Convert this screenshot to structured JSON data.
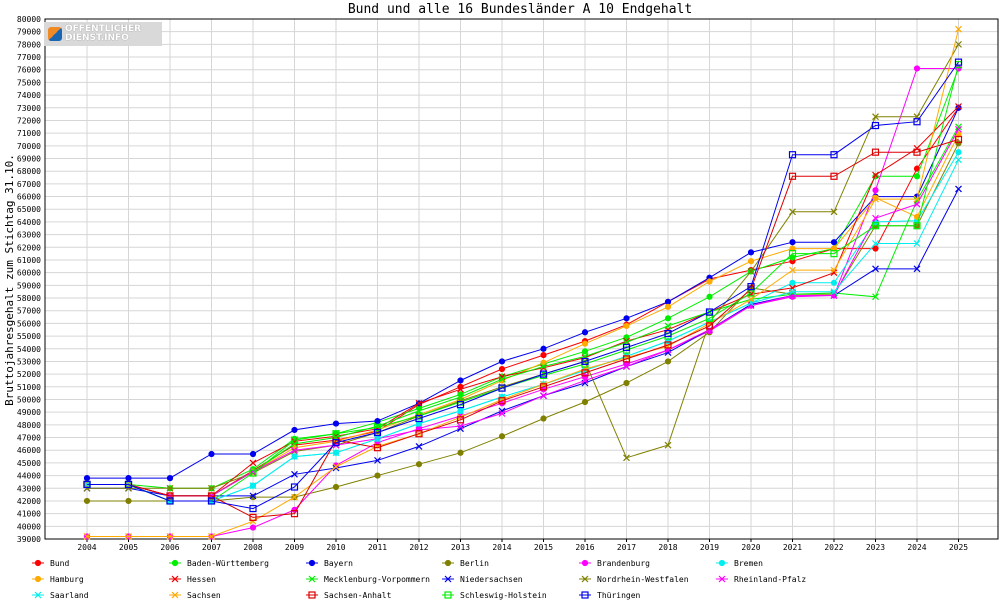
{
  "logo": {
    "line1": "ÖFFENTLICHER",
    "line2": "DIENST.INFO"
  },
  "chart_data": {
    "type": "line",
    "title": "Bund und alle 16 Bundesländer A 10 Endgehalt",
    "ylabel": "Bruttojahresgehalt zum Stichtag 31.10.",
    "xlabel": "",
    "categories": [
      "2004",
      "2005",
      "2006",
      "2007",
      "2008",
      "2009",
      "2010",
      "2011",
      "2012",
      "2013",
      "2014",
      "2015",
      "2016",
      "2017",
      "2018",
      "2019",
      "2020",
      "2021",
      "2022",
      "2023",
      "2024",
      "2025"
    ],
    "ylim": [
      39000,
      80000
    ],
    "ytick_step": 1000,
    "grid": true,
    "legend_position": "bottom",
    "series": [
      {
        "name": "Bund",
        "color": "#ff0000",
        "marker": "dot",
        "values": [
          43300,
          43300,
          42400,
          42400,
          44400,
          46400,
          46800,
          47500,
          49600,
          51000,
          52400,
          53500,
          54600,
          55900,
          57700,
          59500,
          60200,
          60900,
          61900,
          61900,
          68200,
          73000
        ]
      },
      {
        "name": "Baden-Württemberg",
        "color": "#00ee00",
        "marker": "dot",
        "values": [
          43300,
          43300,
          43000,
          43000,
          44500,
          46900,
          47300,
          48200,
          49300,
          50400,
          51800,
          52800,
          53800,
          54900,
          56400,
          58100,
          60100,
          61200,
          61900,
          67600,
          67600,
          76100
        ]
      },
      {
        "name": "Bayern",
        "color": "#0000ee",
        "marker": "dot",
        "values": [
          43800,
          43800,
          43800,
          45700,
          45700,
          47600,
          48100,
          48300,
          49700,
          51500,
          53000,
          54000,
          55300,
          56400,
          57700,
          59600,
          61600,
          62400,
          62400,
          66000,
          66000,
          73000
        ]
      },
      {
        "name": "Berlin",
        "color": "#808000",
        "marker": "dot",
        "values": [
          42000,
          42000,
          42000,
          42000,
          42300,
          42300,
          43100,
          44000,
          44900,
          45800,
          47100,
          48500,
          49800,
          51300,
          53000,
          55300,
          58800,
          58300,
          58300,
          63700,
          63700,
          70200
        ]
      },
      {
        "name": "Brandenburg",
        "color": "#ff00ff",
        "marker": "dot",
        "values": [
          39200,
          39200,
          39200,
          39200,
          39900,
          41300,
          44800,
          46600,
          47700,
          48700,
          49700,
          50800,
          51800,
          52800,
          53900,
          55400,
          57400,
          58100,
          58200,
          66500,
          76100,
          76100
        ]
      },
      {
        "name": "Bremen",
        "color": "#00eeee",
        "marker": "dot",
        "values": [
          43300,
          43300,
          42000,
          42000,
          43200,
          45500,
          45800,
          46900,
          48100,
          49100,
          50200,
          51200,
          52300,
          53400,
          54600,
          56100,
          57600,
          59200,
          59200,
          64000,
          64100,
          69500
        ]
      },
      {
        "name": "Hamburg",
        "color": "#ffaa00",
        "marker": "dot",
        "values": [
          43300,
          43300,
          42400,
          42400,
          44300,
          46200,
          46700,
          47600,
          48800,
          50000,
          51500,
          52900,
          54400,
          55800,
          57300,
          59300,
          60900,
          61900,
          61900,
          65900,
          64400,
          70900
        ]
      },
      {
        "name": "Hessen",
        "color": "#ee0000",
        "marker": "x",
        "values": [
          43300,
          43300,
          42400,
          42400,
          45000,
          46700,
          47100,
          47700,
          49700,
          50800,
          51800,
          52500,
          53300,
          54600,
          55500,
          56900,
          58300,
          58800,
          60000,
          67700,
          69800,
          73100
        ]
      },
      {
        "name": "Mecklenburg-Vorpommern",
        "color": "#00ee00",
        "marker": "x",
        "values": [
          43300,
          43300,
          42400,
          42400,
          44300,
          46500,
          47000,
          47900,
          49100,
          50200,
          51600,
          52600,
          53400,
          54500,
          55800,
          56900,
          57900,
          58300,
          58400,
          58100,
          65700,
          71500
        ]
      },
      {
        "name": "Niedersachsen",
        "color": "#0000ee",
        "marker": "x",
        "values": [
          43000,
          43000,
          42400,
          42400,
          42400,
          44100,
          44600,
          45200,
          46300,
          47700,
          49100,
          50300,
          51300,
          52600,
          53700,
          55500,
          57500,
          58200,
          58200,
          60300,
          60300,
          66600
        ]
      },
      {
        "name": "Nordrhein-Westfalen",
        "color": "#808000",
        "marker": "x",
        "values": [
          43000,
          43000,
          43000,
          43000,
          44200,
          45900,
          46400,
          47400,
          48700,
          49900,
          51000,
          52000,
          53000,
          45400,
          46400,
          56100,
          60100,
          64800,
          64800,
          72300,
          72300,
          78000
        ]
      },
      {
        "name": "Rheinland-Pfalz",
        "color": "#ff00ff",
        "marker": "x",
        "values": [
          43300,
          43300,
          42400,
          42400,
          44300,
          46000,
          46400,
          46900,
          47600,
          47900,
          48900,
          50300,
          51500,
          52600,
          53900,
          55500,
          57400,
          58200,
          58200,
          64300,
          65400,
          71300
        ]
      },
      {
        "name": "Saarland",
        "color": "#00eeee",
        "marker": "x",
        "values": [
          43300,
          43300,
          42000,
          42000,
          43200,
          45500,
          45800,
          46900,
          48100,
          49100,
          50200,
          51200,
          52300,
          53400,
          54600,
          56100,
          57600,
          58500,
          58500,
          62300,
          62300,
          68900
        ]
      },
      {
        "name": "Sachsen",
        "color": "#ffaa00",
        "marker": "x",
        "values": [
          39200,
          39200,
          39200,
          39200,
          40400,
          42300,
          44700,
          46300,
          47300,
          48600,
          50000,
          51200,
          52400,
          53300,
          54200,
          56000,
          57900,
          60200,
          60200,
          65800,
          65800,
          79200
        ]
      },
      {
        "name": "Sachsen-Anhalt",
        "color": "#dd0000",
        "marker": "square",
        "values": [
          43300,
          43300,
          42400,
          42400,
          40700,
          41000,
          46800,
          46200,
          47300,
          48400,
          49900,
          51000,
          52100,
          53200,
          54300,
          55800,
          58700,
          67600,
          67600,
          69500,
          69500,
          70500
        ]
      },
      {
        "name": "Schleswig-Holstein",
        "color": "#00ee00",
        "marker": "square",
        "values": [
          43300,
          43300,
          42000,
          42000,
          44200,
          46800,
          47300,
          47800,
          48700,
          49800,
          50900,
          51900,
          52800,
          53900,
          55000,
          56400,
          58400,
          61500,
          61500,
          63700,
          63700,
          76400
        ]
      },
      {
        "name": "Thüringen",
        "color": "#0000ee",
        "marker": "square",
        "values": [
          43300,
          43300,
          42000,
          42000,
          41400,
          43100,
          46600,
          47400,
          48500,
          49600,
          50900,
          52000,
          53000,
          54100,
          55200,
          56900,
          58900,
          69300,
          69300,
          71600,
          71900,
          76600
        ]
      }
    ]
  }
}
